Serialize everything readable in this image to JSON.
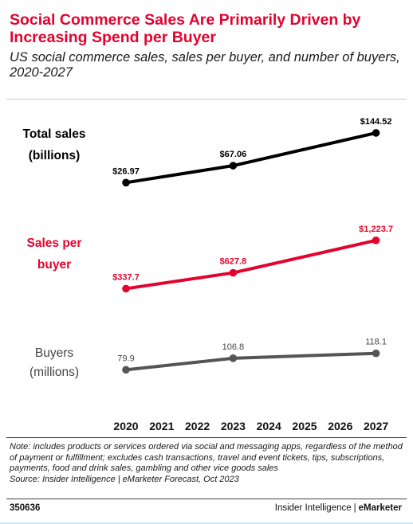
{
  "header": {
    "title": "Social Commerce Sales Are Primarily Driven by Increasing Spend per Buyer",
    "subtitle": "US social commerce sales, sales per buyer, and number of buyers, 2020-2027"
  },
  "chart_data": {
    "type": "line",
    "x": [
      "2020",
      "2021",
      "2022",
      "2023",
      "2024",
      "2025",
      "2026",
      "2027"
    ],
    "series": [
      {
        "name": "Total sales (billions)",
        "label_lines": [
          "Total sales",
          "(billions)"
        ],
        "color": "#000000",
        "label_color": "#000000",
        "points": [
          {
            "x": "2020",
            "y": 26.97,
            "label": "$26.97"
          },
          {
            "x": "2023",
            "y": 67.06,
            "label": "$67.06"
          },
          {
            "x": "2027",
            "y": 144.52,
            "label": "$144.52"
          }
        ]
      },
      {
        "name": "Sales per buyer",
        "label_lines": [
          "Sales per",
          "buyer"
        ],
        "color": "#e4032e",
        "label_color": "#e4032e",
        "points": [
          {
            "x": "2020",
            "y": 337.7,
            "label": "$337.7"
          },
          {
            "x": "2023",
            "y": 627.8,
            "label": "$627.8"
          },
          {
            "x": "2027",
            "y": 1223.7,
            "label": "$1,223.7"
          }
        ]
      },
      {
        "name": "Buyers (millions)",
        "label_lines": [
          "Buyers",
          "(millions)"
        ],
        "color": "#555555",
        "label_color": "#444444",
        "points": [
          {
            "x": "2020",
            "y": 79.9,
            "label": "79.9"
          },
          {
            "x": "2023",
            "y": 106.8,
            "label": "106.8"
          },
          {
            "x": "2027",
            "y": 118.1,
            "label": "118.1"
          }
        ]
      }
    ],
    "grid": false,
    "legend": "inline-left"
  },
  "footer": {
    "note": "Note: includes products or services ordered via social and messaging apps, regardless of the method of payment or fulfillment; excludes cash transactions, travel and event tickets, tips, subscriptions, payments, food and drink sales, gambling and other vice goods sales",
    "source": "Source: Insider Intelligence | eMarketer Forecast, Oct 2023",
    "chart_id": "350636",
    "brand_primary": "Insider Intelligence",
    "brand_separator": "|",
    "brand_secondary": "eMarketer"
  }
}
